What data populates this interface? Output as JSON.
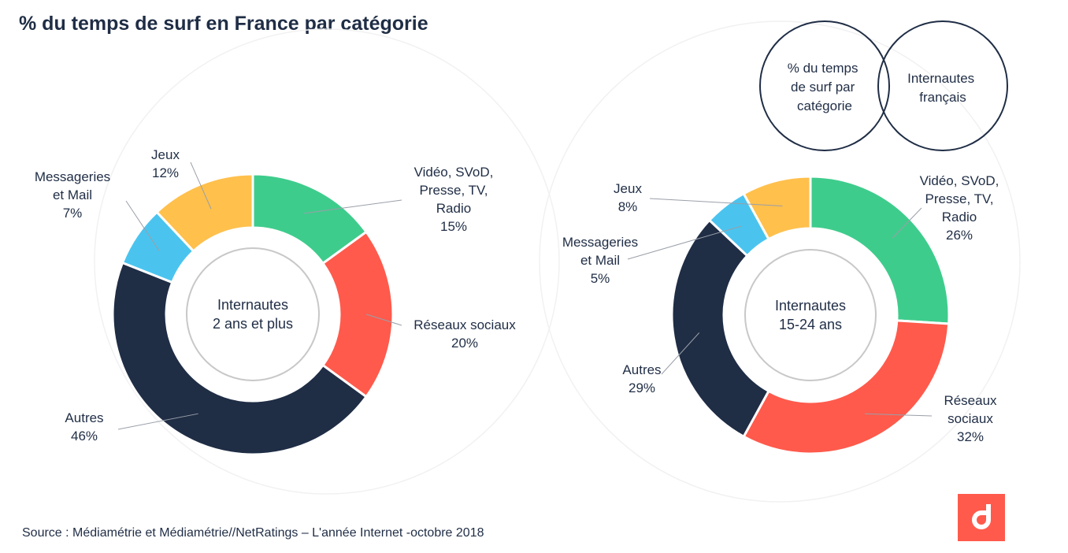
{
  "page": {
    "title": "% du temps de surf en France par catégorie",
    "source": "Source : Médiamétrie et Médiamétrie//NetRatings – L'année Internet -octobre 2018"
  },
  "legend": {
    "left_circle": [
      "% du temps",
      "de surf par",
      "catégorie"
    ],
    "right_circle": [
      "Internautes",
      "français"
    ]
  },
  "colors": {
    "video": "#3ecc8c",
    "reseaux": "#ff5a4c",
    "autres": "#1f2d45",
    "messageries": "#4ac4ef",
    "jeux": "#ffc04c",
    "text": "#1f2d45",
    "logo": "#ff5a4c"
  },
  "chart_data": [
    {
      "type": "pie",
      "center_label": [
        "Internautes",
        "2 ans et plus"
      ],
      "slices": [
        {
          "key": "video",
          "label": [
            "Vidéo, SVoD,",
            "Presse, TV,",
            "Radio"
          ],
          "value": 15,
          "value_label": "15%"
        },
        {
          "key": "reseaux",
          "label": [
            "Réseaux sociaux"
          ],
          "value": 20,
          "value_label": "20%"
        },
        {
          "key": "autres",
          "label": [
            "Autres"
          ],
          "value": 46,
          "value_label": "46%"
        },
        {
          "key": "messageries",
          "label": [
            "Messageries",
            "et Mail"
          ],
          "value": 7,
          "value_label": "7%"
        },
        {
          "key": "jeux",
          "label": [
            "Jeux"
          ],
          "value": 12,
          "value_label": "12%"
        }
      ]
    },
    {
      "type": "pie",
      "center_label": [
        "Internautes",
        "15-24 ans"
      ],
      "slices": [
        {
          "key": "video",
          "label": [
            "Vidéo, SVoD,",
            "Presse, TV,",
            "Radio"
          ],
          "value": 26,
          "value_label": "26%"
        },
        {
          "key": "reseaux",
          "label": [
            "Réseaux",
            "sociaux"
          ],
          "value": 32,
          "value_label": "32%"
        },
        {
          "key": "autres",
          "label": [
            "Autres"
          ],
          "value": 29,
          "value_label": "29%"
        },
        {
          "key": "messageries",
          "label": [
            "Messageries",
            "et Mail"
          ],
          "value": 5,
          "value_label": "5%"
        },
        {
          "key": "jeux",
          "label": [
            "Jeux"
          ],
          "value": 8,
          "value_label": "8%"
        }
      ]
    }
  ]
}
